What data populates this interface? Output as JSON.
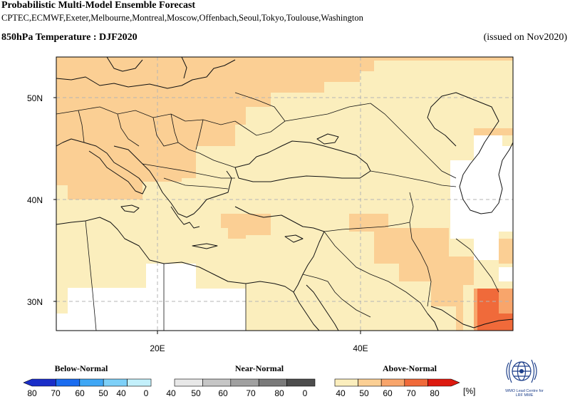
{
  "header": {
    "title": "Probabilistic Multi-Model Ensemble Forecast",
    "models": "CPTEC,ECMWF,Exeter,Melbourne,Montreal,Moscow,Offenbach,Seoul,Tokyo,Toulouse,Washington",
    "subtitle": "850hPa Temperature : DJF2020",
    "issued": "(issued on Nov2020)"
  },
  "map": {
    "lon_range": [
      10,
      55
    ],
    "lat_range": [
      27,
      54
    ],
    "lat_labels": [
      "50N",
      "40N",
      "30N"
    ],
    "lon_labels": [
      "20E",
      "40E"
    ],
    "lat_ticks": [
      50,
      40,
      30
    ],
    "lon_ticks": [
      20,
      40
    ]
  },
  "legend": {
    "categories": [
      "Below-Normal",
      "Near-Normal",
      "Above-Normal"
    ],
    "ticks": [
      "80",
      "70",
      "60",
      "50",
      "40",
      "0",
      "40",
      "50",
      "60",
      "70",
      "80",
      "0",
      "40",
      "50",
      "60",
      "70",
      "80"
    ],
    "unit": "[%]",
    "below_colors": [
      "#1a2ec8",
      "#1a6cf0",
      "#3fa7f5",
      "#7dd0f8",
      "#c3f0fb"
    ],
    "near_colors": [
      "#e8e8e8",
      "#c6c6c6",
      "#a0a0a0",
      "#7a7a7a",
      "#4d4d4d"
    ],
    "above_colors": [
      "#fbeebd",
      "#fbcf94",
      "#f8a56b",
      "#f06a3a",
      "#dd1a10"
    ]
  },
  "logo": {
    "text_line1": "WMO Lead Centre for",
    "text_line2": "LRF MME"
  }
}
